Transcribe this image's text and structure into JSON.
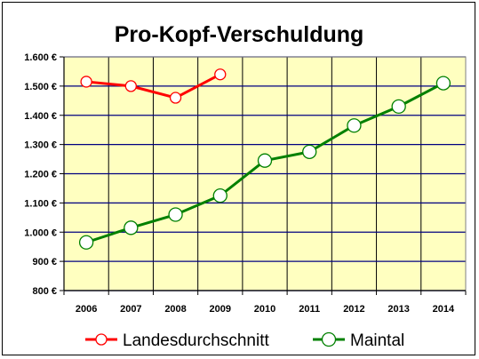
{
  "chart_data": {
    "type": "line",
    "title": "Pro-Kopf-Verschuldung",
    "xlabel": "",
    "ylabel": "",
    "categories": [
      "2006",
      "2007",
      "2008",
      "2009",
      "2010",
      "2011",
      "2012",
      "2013",
      "2014"
    ],
    "ylim": [
      800,
      1600
    ],
    "yticks": [
      800,
      900,
      1000,
      1100,
      1200,
      1300,
      1400,
      1500,
      1600
    ],
    "ytick_labels": [
      "800 €",
      "900 €",
      "1.000 €",
      "1.100 €",
      "1.200 €",
      "1.300 €",
      "1.400 €",
      "1.500 €",
      "1.600 €"
    ],
    "grid": true,
    "legend_position": "bottom",
    "plot_background": "#ffffc0",
    "series": [
      {
        "name": "Landesdurchschnitt",
        "color": "#ff0000",
        "marker": "circle-white",
        "values": [
          1515,
          1500,
          1460,
          1540,
          null,
          null,
          null,
          null,
          null
        ]
      },
      {
        "name": "Maintal",
        "color": "#008000",
        "marker": "circle-white",
        "values": [
          965,
          1015,
          1060,
          1125,
          1245,
          1275,
          1365,
          1430,
          1510
        ]
      }
    ]
  },
  "colors": {
    "major_grid": "#000080",
    "minor_grid": "#000000"
  }
}
